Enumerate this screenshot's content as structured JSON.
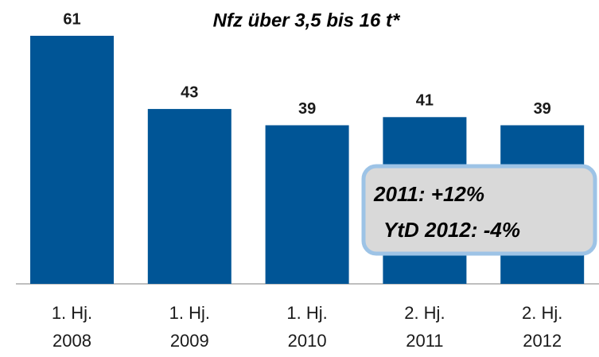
{
  "chart_data": {
    "type": "bar",
    "title": "Nfz über 3,5 bis 16 t*",
    "categories": [
      "1. Hj.\n2008",
      "1. Hj.\n2009",
      "1. Hj.\n2010",
      "2. Hj.\n2011",
      "2. Hj.\n2012"
    ],
    "values": [
      61,
      43,
      39,
      41,
      39
    ],
    "color": "#005596",
    "annotations": [
      "2011: +12%",
      "YtD 2012: -4%"
    ]
  }
}
